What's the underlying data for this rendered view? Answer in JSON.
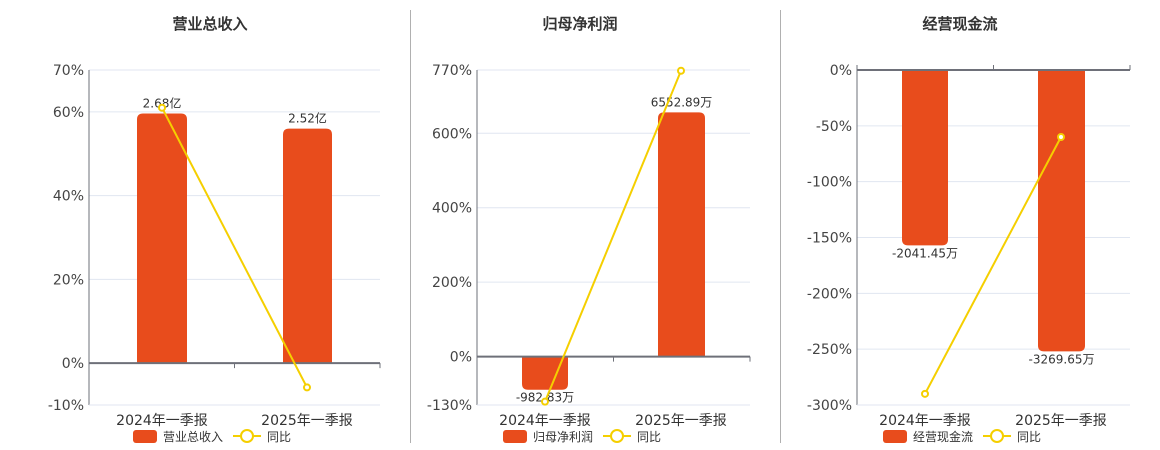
{
  "colors": {
    "bar": "#e84c1c",
    "line": "#f5cf00",
    "axis": "#6e7079",
    "grid": "#e0e6f1",
    "divider": "#b0b0b0"
  },
  "legend": {
    "line_label": "同比"
  },
  "chart_data": [
    {
      "type": "bar+line",
      "title": "营业总收入",
      "categories": [
        "2024年一季报",
        "2025年一季报"
      ],
      "yaxis_ticks": [
        "70%",
        "60%",
        "40%",
        "20%",
        "0%",
        "-10%"
      ],
      "yaxis_tick_values": [
        70,
        60,
        40,
        20,
        0,
        -10
      ],
      "ylim": [
        -10,
        70
      ],
      "series": [
        {
          "name": "营业总收入",
          "kind": "bar",
          "labels": [
            "2.68亿",
            "2.52亿"
          ],
          "plot_values": [
            59.6,
            56.0
          ],
          "values_yi": [
            2.68,
            2.52
          ]
        },
        {
          "name": "同比",
          "kind": "line",
          "values": [
            61.0,
            -5.8
          ]
        }
      ],
      "bar_label_position": "top"
    },
    {
      "type": "bar+line",
      "title": "归母净利润",
      "categories": [
        "2024年一季报",
        "2025年一季报"
      ],
      "yaxis_ticks": [
        "770%",
        "600%",
        "400%",
        "200%",
        "0%",
        "-130%"
      ],
      "yaxis_tick_values": [
        770,
        600,
        400,
        200,
        0,
        -130
      ],
      "ylim": [
        -130,
        770
      ],
      "series": [
        {
          "name": "归母净利润",
          "kind": "bar",
          "labels": [
            "-982.83万",
            "6552.89万"
          ],
          "plot_values": [
            -89,
            656
          ],
          "values_wan": [
            -982.83,
            6552.89
          ]
        },
        {
          "name": "同比",
          "kind": "line",
          "values": [
            -121,
            768
          ]
        }
      ],
      "bar_label_position": "end"
    },
    {
      "type": "bar+line",
      "title": "经营现金流",
      "categories": [
        "2024年一季报",
        "2025年一季报"
      ],
      "yaxis_ticks": [
        "0%",
        "-50%",
        "-100%",
        "-150%",
        "-200%",
        "-250%",
        "-300%"
      ],
      "yaxis_tick_values": [
        0,
        -50,
        -100,
        -150,
        -200,
        -250,
        -300
      ],
      "ylim": [
        -300,
        0
      ],
      "series": [
        {
          "name": "经营现金流",
          "kind": "bar",
          "labels": [
            "-2041.45万",
            "-3269.65万"
          ],
          "plot_values": [
            -157,
            -252
          ],
          "values_wan": [
            -2041.45,
            -3269.65
          ]
        },
        {
          "name": "同比",
          "kind": "line",
          "values": [
            -290,
            -60
          ]
        }
      ],
      "bar_label_position": "end"
    }
  ]
}
